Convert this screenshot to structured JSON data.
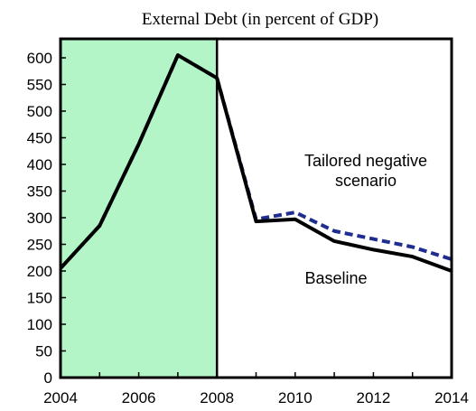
{
  "chart_data": {
    "type": "line",
    "title": "External Debt (in percent of GDP)",
    "xlabel": "",
    "ylabel": "",
    "xlim": [
      2004,
      2014
    ],
    "ylim": [
      0,
      600
    ],
    "x_ticks": [
      2004,
      2006,
      2008,
      2010,
      2012,
      2014
    ],
    "y_ticks": [
      0,
      50,
      100,
      150,
      200,
      250,
      300,
      350,
      400,
      450,
      500,
      550,
      600
    ],
    "grid": false,
    "shaded_region": {
      "x_start": 2004,
      "x_end": 2008,
      "color": "#b3f5c6"
    },
    "x": [
      2004,
      2005,
      2006,
      2007,
      2008,
      2009,
      2010,
      2011,
      2012,
      2013,
      2014
    ],
    "series": [
      {
        "label": "Tailored negative scenario",
        "color": "#1f2d8f",
        "line_style": "dashed",
        "values": [
          205,
          285,
          438,
          605,
          562,
          297,
          310,
          275,
          260,
          245,
          222
        ]
      },
      {
        "label": "Baseline",
        "color": "#000000",
        "line_style": "solid",
        "values": [
          205,
          285,
          438,
          605,
          562,
          293,
          297,
          256,
          240,
          227,
          200
        ]
      }
    ],
    "annotations": [
      {
        "text_line1": "Tailored negative",
        "text_line2": "scenario",
        "series": "Tailored negative scenario"
      },
      {
        "text": "Baseline",
        "series": "Baseline"
      }
    ]
  }
}
